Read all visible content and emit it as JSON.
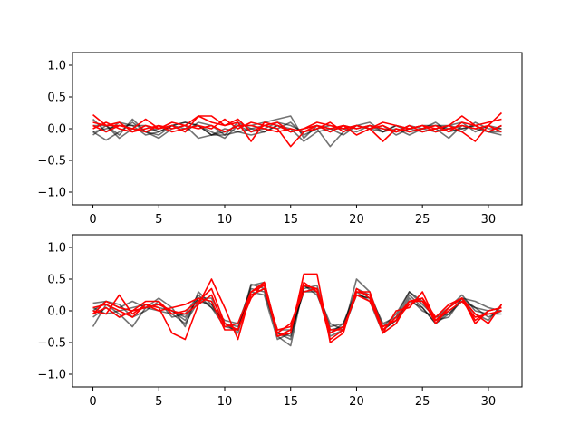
{
  "chart_data": [
    {
      "type": "line",
      "title": "",
      "xlabel": "",
      "ylabel": "",
      "xlim": [
        -1.55,
        32.55
      ],
      "ylim": [
        -1.2,
        1.2
      ],
      "xticks": [
        0,
        5,
        10,
        15,
        20,
        25,
        30
      ],
      "xtick_labels": [
        "0",
        "5",
        "10",
        "15",
        "20",
        "25",
        "30"
      ],
      "yticks": [
        -1.0,
        -0.5,
        0.0,
        0.5,
        1.0
      ],
      "ytick_labels": [
        "−1.0",
        "−0.5",
        "0.0",
        "0.5",
        "1.0"
      ],
      "grid": false,
      "x": [
        0,
        1,
        2,
        3,
        4,
        5,
        6,
        7,
        8,
        9,
        10,
        11,
        12,
        13,
        14,
        15,
        16,
        17,
        18,
        19,
        20,
        21,
        22,
        23,
        24,
        25,
        26,
        27,
        28,
        29,
        30,
        31
      ],
      "series": [
        {
          "color": "#000000",
          "opacity": 0.55,
          "values": [
            0.15,
            -0.05,
            0.1,
            0.05,
            0.05,
            -0.05,
            0.05,
            0.1,
            0.05,
            -0.1,
            -0.05,
            0.05,
            0.05,
            0.1,
            0.15,
            0.2,
            -0.15,
            0.05,
            -0.05,
            0.05,
            0.0,
            0.05,
            -0.05,
            0.05,
            0.0,
            0.05,
            0.05,
            0.05,
            0.1,
            -0.05,
            0.05,
            0.0
          ]
        },
        {
          "color": "#000000",
          "opacity": 0.55,
          "values": [
            0.05,
            0.05,
            -0.1,
            0.15,
            -0.05,
            -0.1,
            0.05,
            0.1,
            0.05,
            -0.05,
            -0.15,
            0.05,
            -0.05,
            0.0,
            0.1,
            0.05,
            -0.05,
            0.0,
            -0.28,
            -0.05,
            0.05,
            0.0,
            0.05,
            -0.1,
            0.0,
            -0.05,
            0.0,
            -0.15,
            0.05,
            0.0,
            -0.05,
            -0.05
          ]
        },
        {
          "color": "#000000",
          "opacity": 0.55,
          "values": [
            -0.05,
            -0.18,
            -0.05,
            0.1,
            -0.05,
            -0.15,
            0.0,
            0.05,
            -0.15,
            -0.1,
            -0.1,
            -0.05,
            -0.1,
            -0.05,
            0.05,
            0.0,
            -0.2,
            -0.05,
            0.0,
            0.0,
            0.05,
            0.1,
            -0.05,
            0.0,
            -0.1,
            0.0,
            -0.05,
            0.05,
            0.0,
            0.05,
            -0.05,
            0.05
          ]
        },
        {
          "color": "#000000",
          "opacity": 0.55,
          "values": [
            -0.1,
            0.05,
            -0.15,
            0.0,
            -0.05,
            0.0,
            0.05,
            -0.05,
            0.1,
            0.05,
            -0.1,
            0.1,
            0.0,
            0.05,
            0.0,
            0.1,
            -0.1,
            0.0,
            0.05,
            0.0,
            -0.05,
            0.05,
            0.0,
            -0.05,
            0.05,
            0.0,
            0.1,
            -0.05,
            0.0,
            0.05,
            -0.05,
            -0.1
          ]
        },
        {
          "color": "#000000",
          "opacity": 0.55,
          "values": [
            -0.05,
            0.0,
            0.05,
            0.05,
            -0.1,
            -0.05,
            0.05,
            0.0,
            0.05,
            -0.1,
            0.0,
            -0.05,
            0.0,
            -0.05,
            0.05,
            -0.05,
            0.0,
            0.05,
            0.0,
            -0.1,
            0.05,
            0.0,
            -0.05,
            0.05,
            -0.05,
            0.0,
            0.05,
            0.0,
            -0.05,
            0.1,
            0.0,
            0.0
          ]
        },
        {
          "color": "#ff0000",
          "opacity": 1,
          "values": [
            0.22,
            0.05,
            0.1,
            -0.05,
            0.05,
            0.0,
            0.05,
            -0.05,
            0.2,
            0.1,
            0.05,
            0.15,
            -0.05,
            0.05,
            0.1,
            -0.05,
            0.0,
            0.1,
            0.05,
            0.0,
            0.05,
            0.0,
            0.1,
            0.05,
            0.0,
            0.05,
            0.0,
            0.05,
            0.2,
            0.05,
            0.1,
            0.15
          ]
        },
        {
          "color": "#ff0000",
          "opacity": 1,
          "values": [
            0.05,
            -0.05,
            0.05,
            0.0,
            0.15,
            0.0,
            0.1,
            0.05,
            0.2,
            0.2,
            0.05,
            0.1,
            -0.2,
            0.1,
            0.05,
            -0.05,
            0.0,
            0.05,
            -0.05,
            0.05,
            -0.1,
            0.0,
            0.05,
            -0.05,
            0.05,
            -0.05,
            0.0,
            0.05,
            -0.05,
            -0.2,
            0.05,
            0.25
          ]
        },
        {
          "color": "#ff0000",
          "opacity": 1,
          "values": [
            0.0,
            0.1,
            0.0,
            -0.05,
            0.0,
            0.05,
            -0.05,
            0.0,
            0.05,
            0.0,
            0.15,
            0.0,
            0.1,
            0.05,
            0.0,
            -0.28,
            -0.05,
            0.0,
            0.1,
            -0.05,
            0.05,
            0.0,
            -0.2,
            0.0,
            -0.05,
            0.0,
            0.05,
            -0.05,
            0.1,
            0.05,
            -0.05,
            0.05
          ]
        },
        {
          "color": "#ff0000",
          "opacity": 1,
          "values": [
            0.1,
            0.05,
            0.05,
            0.0,
            -0.05,
            0.05,
            0.0,
            0.05,
            0.0,
            0.05,
            -0.05,
            0.05,
            0.05,
            0.0,
            -0.05,
            0.0,
            -0.05,
            0.05,
            0.0,
            0.05,
            0.0,
            0.05,
            0.0,
            -0.05,
            0.0,
            0.05,
            -0.05,
            0.0,
            0.05,
            0.0,
            0.05,
            -0.05
          ]
        }
      ]
    },
    {
      "type": "line",
      "title": "",
      "xlabel": "",
      "ylabel": "",
      "xlim": [
        -1.55,
        32.55
      ],
      "ylim": [
        -1.2,
        1.2
      ],
      "xticks": [
        0,
        5,
        10,
        15,
        20,
        25,
        30
      ],
      "xtick_labels": [
        "0",
        "5",
        "10",
        "15",
        "20",
        "25",
        "30"
      ],
      "yticks": [
        -1.0,
        -0.5,
        0.0,
        0.5,
        1.0
      ],
      "ytick_labels": [
        "−1.0",
        "−0.5",
        "0.0",
        "0.5",
        "1.0"
      ],
      "grid": false,
      "x": [
        0,
        1,
        2,
        3,
        4,
        5,
        6,
        7,
        8,
        9,
        10,
        11,
        12,
        13,
        14,
        15,
        16,
        17,
        18,
        19,
        20,
        21,
        22,
        23,
        24,
        25,
        26,
        27,
        28,
        29,
        30,
        31
      ],
      "series": [
        {
          "color": "#000000",
          "opacity": 0.55,
          "values": [
            0.12,
            0.15,
            0.05,
            0.15,
            0.05,
            0.2,
            0.05,
            -0.25,
            0.3,
            0.1,
            -0.2,
            -0.3,
            0.42,
            0.35,
            -0.4,
            -0.55,
            0.4,
            0.3,
            -0.2,
            -0.3,
            0.5,
            0.3,
            -0.25,
            -0.05,
            0.3,
            0.1,
            -0.1,
            -0.05,
            0.2,
            0.15,
            0.05,
            0.0
          ]
        },
        {
          "color": "#000000",
          "opacity": 0.55,
          "values": [
            -0.25,
            0.1,
            -0.05,
            -0.25,
            0.05,
            0.1,
            0.0,
            -0.15,
            0.2,
            0.2,
            -0.2,
            -0.35,
            0.4,
            0.45,
            -0.35,
            -0.4,
            0.35,
            0.4,
            -0.3,
            -0.25,
            0.25,
            0.2,
            -0.3,
            -0.15,
            0.25,
            0.05,
            -0.2,
            0.0,
            0.15,
            -0.05,
            -0.15,
            0.1
          ]
        },
        {
          "color": "#000000",
          "opacity": 0.55,
          "values": [
            0.0,
            0.15,
            0.1,
            -0.1,
            0.0,
            0.15,
            -0.1,
            -0.05,
            0.25,
            0.05,
            -0.25,
            -0.3,
            0.3,
            0.25,
            -0.45,
            -0.35,
            0.3,
            0.35,
            -0.35,
            -0.2,
            0.3,
            0.15,
            -0.35,
            -0.2,
            0.2,
            0.0,
            -0.1,
            0.05,
            0.25,
            0.0,
            -0.05,
            -0.05
          ]
        },
        {
          "color": "#000000",
          "opacity": 0.55,
          "values": [
            0.05,
            -0.05,
            0.0,
            0.05,
            0.1,
            0.05,
            0.0,
            -0.1,
            0.2,
            0.05,
            -0.15,
            -0.2,
            0.35,
            0.3,
            -0.35,
            -0.45,
            0.4,
            0.25,
            -0.25,
            -0.2,
            0.35,
            0.25,
            -0.2,
            -0.1,
            0.3,
            0.15,
            -0.15,
            -0.1,
            0.2,
            0.05,
            0.0,
            0.05
          ]
        },
        {
          "color": "#000000",
          "opacity": 0.55,
          "values": [
            -0.1,
            0.05,
            -0.1,
            0.0,
            0.05,
            0.0,
            -0.05,
            -0.2,
            0.15,
            0.1,
            -0.2,
            -0.25,
            0.25,
            0.35,
            -0.3,
            -0.3,
            0.3,
            0.3,
            -0.4,
            -0.3,
            0.25,
            0.2,
            -0.3,
            -0.15,
            0.15,
            0.05,
            -0.2,
            -0.05,
            0.15,
            0.05,
            -0.1,
            0.0
          ]
        },
        {
          "color": "#ff0000",
          "opacity": 1,
          "values": [
            0.0,
            -0.05,
            0.25,
            -0.05,
            0.1,
            0.05,
            -0.35,
            -0.45,
            0.1,
            0.5,
            0.05,
            -0.45,
            0.3,
            0.45,
            -0.4,
            -0.35,
            0.58,
            0.58,
            -0.5,
            -0.35,
            0.35,
            0.2,
            -0.35,
            0.0,
            0.05,
            0.3,
            -0.15,
            0.05,
            0.2,
            -0.2,
            0.0,
            0.05
          ]
        },
        {
          "color": "#ff0000",
          "opacity": 1,
          "values": [
            -0.05,
            0.05,
            -0.1,
            0.0,
            0.15,
            0.15,
            -0.05,
            0.0,
            0.15,
            0.35,
            -0.2,
            -0.3,
            0.2,
            0.45,
            -0.35,
            -0.2,
            0.3,
            0.35,
            -0.45,
            -0.3,
            0.3,
            0.25,
            -0.35,
            -0.2,
            0.15,
            0.2,
            -0.2,
            0.05,
            0.2,
            -0.05,
            -0.2,
            0.1
          ]
        },
        {
          "color": "#ff0000",
          "opacity": 1,
          "values": [
            0.05,
            0.1,
            0.0,
            -0.1,
            0.1,
            0.0,
            0.05,
            0.1,
            0.2,
            0.15,
            -0.3,
            -0.3,
            0.25,
            0.35,
            -0.3,
            -0.25,
            0.45,
            0.3,
            -0.35,
            -0.25,
            0.25,
            0.15,
            -0.25,
            -0.15,
            0.1,
            0.2,
            -0.1,
            0.1,
            0.2,
            -0.15,
            0.0,
            0.05
          ]
        },
        {
          "color": "#ff0000",
          "opacity": 1,
          "values": [
            -0.05,
            0.15,
            0.05,
            0.0,
            0.05,
            0.1,
            0.0,
            -0.05,
            0.1,
            0.25,
            -0.25,
            -0.2,
            0.3,
            0.4,
            -0.4,
            -0.3,
            0.4,
            0.35,
            -0.3,
            -0.3,
            0.3,
            0.3,
            -0.3,
            -0.1,
            0.15,
            0.15,
            -0.15,
            0.0,
            0.15,
            -0.1,
            -0.05,
            0.0
          ]
        }
      ]
    }
  ]
}
